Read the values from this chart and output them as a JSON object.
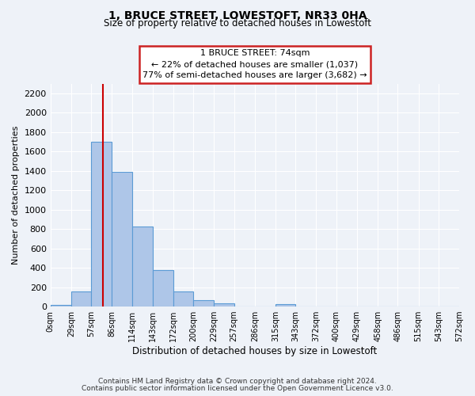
{
  "title": "1, BRUCE STREET, LOWESTOFT, NR33 0HA",
  "subtitle": "Size of property relative to detached houses in Lowestoft",
  "xlabel": "Distribution of detached houses by size in Lowestoft",
  "ylabel": "Number of detached properties",
  "bar_edges": [
    0,
    29,
    57,
    86,
    114,
    143,
    172,
    200,
    229,
    257,
    286,
    315,
    343,
    372,
    400,
    429,
    458,
    486,
    515,
    543,
    572
  ],
  "bar_heights": [
    20,
    155,
    1700,
    1390,
    830,
    380,
    160,
    65,
    30,
    0,
    0,
    25,
    0,
    0,
    0,
    0,
    0,
    0,
    0,
    0
  ],
  "bar_color": "#aec6e8",
  "bar_edge_color": "#5b9bd5",
  "vline_x": 74,
  "vline_color": "#cc0000",
  "ann_line1": "1 BRUCE STREET: 74sqm",
  "ann_line2": "← 22% of detached houses are smaller (1,037)",
  "ann_line3": "77% of semi-detached houses are larger (3,682) →",
  "ylim": [
    0,
    2300
  ],
  "yticks": [
    0,
    200,
    400,
    600,
    800,
    1000,
    1200,
    1400,
    1600,
    1800,
    2000,
    2200
  ],
  "xtick_labels": [
    "0sqm",
    "29sqm",
    "57sqm",
    "86sqm",
    "114sqm",
    "143sqm",
    "172sqm",
    "200sqm",
    "229sqm",
    "257sqm",
    "286sqm",
    "315sqm",
    "343sqm",
    "372sqm",
    "400sqm",
    "429sqm",
    "458sqm",
    "486sqm",
    "515sqm",
    "543sqm",
    "572sqm"
  ],
  "background_color": "#eef2f8",
  "grid_color": "#ffffff",
  "footnote1": "Contains HM Land Registry data © Crown copyright and database right 2024.",
  "footnote2": "Contains public sector information licensed under the Open Government Licence v3.0."
}
